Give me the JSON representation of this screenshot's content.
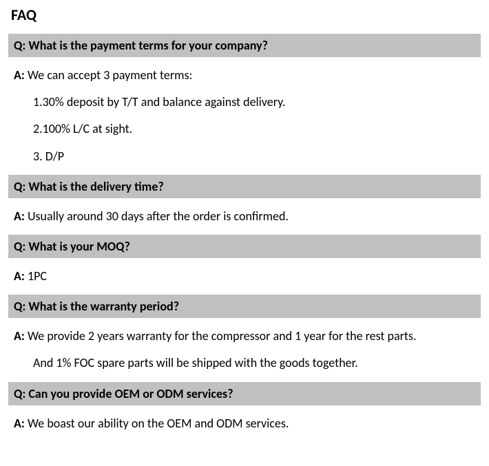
{
  "title": "FAQ",
  "colors": {
    "question_bg": "#c0c0c0",
    "page_bg": "#ffffff",
    "text": "#000000"
  },
  "typography": {
    "title_fontsize": 22,
    "row_fontsize": 18,
    "font_family": "Calibri"
  },
  "items": [
    {
      "q_prefix": "Q:",
      "q_text": " What is the payment terms for your company?",
      "a_prefix": "A:",
      "a_text": " We can accept 3 payment terms:",
      "sub": [
        "1.30% deposit by T/T and balance against delivery.",
        "2.100% L/C at sight.",
        "3. D/P"
      ]
    },
    {
      "q_prefix": "Q:",
      "q_text": " What is the delivery time?",
      "a_prefix": "A:",
      "a_text": " Usually around 30 days after the order is confirmed.",
      "sub": []
    },
    {
      "q_prefix": "Q:",
      "q_text": " What is your MOQ?",
      "a_prefix": "A:",
      "a_text": " 1PC",
      "sub": []
    },
    {
      "q_prefix": "Q:",
      "q_text": " What is the warranty period?",
      "a_prefix": "A:",
      "a_text": " We provide 2 years warranty for the compressor and 1 year for the rest parts.",
      "sub": [
        "And 1% FOC spare parts will be shipped with the goods together."
      ]
    },
    {
      "q_prefix": "Q:",
      "q_text": " Can you provide OEM or ODM services?",
      "a_prefix": "A:",
      "a_text": " We boast our ability on the OEM and ODM services.",
      "sub": []
    }
  ]
}
